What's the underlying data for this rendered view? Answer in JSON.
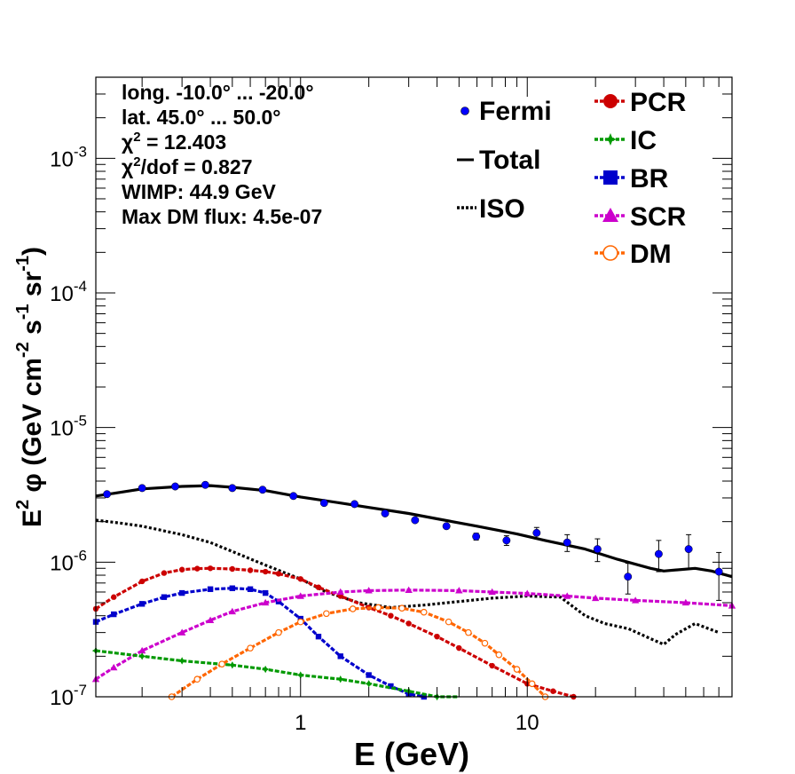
{
  "chart_data": {
    "type": "line",
    "x_scale": "log",
    "y_scale": "log",
    "xlim": [
      0.125,
      80
    ],
    "ylim": [
      1e-07,
      0.004
    ],
    "xlabel": "E (GeV)",
    "ylabel": {
      "base": "E",
      "sup1": "2",
      "phi": " φ (GeV cm",
      "sup2": "-2",
      "mid1": " s",
      "sup3": "-1",
      "mid2": " sr",
      "sup4": "-1",
      "close": ")"
    },
    "x_ticks": [
      {
        "value": 1,
        "label": "1"
      },
      {
        "value": 10,
        "label": "10"
      }
    ],
    "y_ticks": [
      {
        "value": 1e-07,
        "base": "10",
        "exp": "-7"
      },
      {
        "value": 1e-06,
        "base": "10",
        "exp": "-6"
      },
      {
        "value": 1e-05,
        "base": "10",
        "exp": "-5"
      },
      {
        "value": 0.0001,
        "base": "10",
        "exp": "-4"
      },
      {
        "value": 0.001,
        "base": "10",
        "exp": "-3"
      }
    ],
    "info_lines": [
      {
        "text": "long. -10.0° ... -20.0°"
      },
      {
        "text": "lat. 45.0° ... 50.0°"
      },
      {
        "pre": "χ",
        "sup": "2",
        "post": " = 12.403"
      },
      {
        "pre": "χ",
        "sup": "2",
        "post": "/dof = 0.827"
      },
      {
        "text": "WIMP: 44.9 GeV"
      },
      {
        "text": "Max DM flux: 4.5e-07"
      }
    ],
    "legend_left": [
      {
        "name": "Fermi",
        "style": "points",
        "color": "#0000ff"
      },
      {
        "name": "Total",
        "style": "solid",
        "color": "#000000"
      },
      {
        "name": "ISO",
        "style": "dotted",
        "color": "#000000"
      }
    ],
    "legend_right": [
      {
        "name": "PCR",
        "marker": "circle",
        "color": "#cc0000"
      },
      {
        "name": "IC",
        "marker": "star",
        "color": "#009900"
      },
      {
        "name": "BR",
        "marker": "square",
        "color": "#0000cc"
      },
      {
        "name": "SCR",
        "marker": "triangle",
        "color": "#cc00cc"
      },
      {
        "name": "DM",
        "marker": "open-circle",
        "color": "#ff6600"
      }
    ],
    "series": [
      {
        "name": "Total",
        "color": "#000000",
        "style": "solid",
        "x": [
          0.125,
          0.16,
          0.2,
          0.3,
          0.4,
          0.5,
          0.7,
          1.0,
          1.5,
          2.0,
          3.0,
          4.0,
          6.0,
          9.0,
          12.0,
          18.0,
          25.0,
          35.0,
          40.0,
          55.0,
          65.0,
          80.0
        ],
        "y": [
          3.1e-06,
          3.3e-06,
          3.5e-06,
          3.65e-06,
          3.7e-06,
          3.6e-06,
          3.4e-06,
          3.05e-06,
          2.75e-06,
          2.55e-06,
          2.3e-06,
          2.1e-06,
          1.85e-06,
          1.62e-06,
          1.45e-06,
          1.25e-06,
          1.05e-06,
          9e-07,
          8.6e-07,
          9e-07,
          8.6e-07,
          7.8e-07
        ]
      },
      {
        "name": "ISO",
        "color": "#000000",
        "style": "dotted",
        "x": [
          0.125,
          0.16,
          0.2,
          0.3,
          0.4,
          0.5,
          0.7,
          1.0,
          1.3,
          1.8,
          2.5,
          3.5,
          5.0,
          7.0,
          10.0,
          14.0,
          18.0,
          22.0,
          28.0,
          35.0,
          40.0,
          45.0,
          55.0,
          70.0
        ],
        "y": [
          2.05e-06,
          1.95e-06,
          1.85e-06,
          1.6e-06,
          1.4e-06,
          1.2e-06,
          9.5e-07,
          7.5e-07,
          6e-07,
          5e-07,
          4.6e-07,
          4.8e-07,
          5.1e-07,
          5.4e-07,
          5.6e-07,
          5.5e-07,
          4e-07,
          3.5e-07,
          3.2e-07,
          2.7e-07,
          2.45e-07,
          2.9e-07,
          3.5e-07,
          3e-07
        ]
      },
      {
        "name": "PCR",
        "color": "#cc0000",
        "marker": "circle",
        "x": [
          0.125,
          0.15,
          0.2,
          0.25,
          0.3,
          0.35,
          0.4,
          0.5,
          0.6,
          0.7,
          0.8,
          1.0,
          1.2,
          1.5,
          2.0,
          2.5,
          3.0,
          4.0,
          5.0,
          7.0,
          10.0,
          13.0,
          16.0
        ],
        "y": [
          4.5e-07,
          5.5e-07,
          7.2e-07,
          8.3e-07,
          8.8e-07,
          8.95e-07,
          9e-07,
          8.9e-07,
          8.7e-07,
          8.5e-07,
          8.2e-07,
          7.5e-07,
          6.5e-07,
          5.6e-07,
          4.6e-07,
          4e-07,
          3.5e-07,
          2.8e-07,
          2.3e-07,
          1.7e-07,
          1.25e-07,
          1.1e-07,
          1e-07
        ]
      },
      {
        "name": "BR",
        "color": "#0000cc",
        "marker": "square",
        "x": [
          0.125,
          0.15,
          0.2,
          0.25,
          0.3,
          0.4,
          0.5,
          0.6,
          0.7,
          0.8,
          1.0,
          1.2,
          1.5,
          2.0,
          2.5,
          3.0,
          3.5
        ],
        "y": [
          3.6e-07,
          4.1e-07,
          4.9e-07,
          5.5e-07,
          5.9e-07,
          6.3e-07,
          6.4e-07,
          6.3e-07,
          5.9e-07,
          5.1e-07,
          3.8e-07,
          2.8e-07,
          2e-07,
          1.45e-07,
          1.2e-07,
          1.05e-07,
          1e-07
        ]
      },
      {
        "name": "SCR",
        "color": "#cc00cc",
        "marker": "triangle",
        "x": [
          0.125,
          0.15,
          0.2,
          0.3,
          0.4,
          0.5,
          0.7,
          1.0,
          1.5,
          2.0,
          3.0,
          5.0,
          7.0,
          10.0,
          15.0,
          20.0,
          30.0,
          50.0,
          80.0
        ],
        "y": [
          1.35e-07,
          1.65e-07,
          2.2e-07,
          3e-07,
          3.7e-07,
          4.3e-07,
          5e-07,
          5.6e-07,
          6e-07,
          6.15e-07,
          6.2e-07,
          6.15e-07,
          6e-07,
          5.85e-07,
          5.6e-07,
          5.4e-07,
          5.2e-07,
          5e-07,
          4.75e-07
        ]
      },
      {
        "name": "IC",
        "color": "#009900",
        "marker": "star",
        "x": [
          0.125,
          0.2,
          0.3,
          0.5,
          0.7,
          1.0,
          1.5,
          2.0,
          3.0,
          4.0,
          5.0
        ],
        "y": [
          2.2e-07,
          2e-07,
          1.85e-07,
          1.72e-07,
          1.6e-07,
          1.45e-07,
          1.35e-07,
          1.25e-07,
          1.1e-07,
          1e-07,
          9.7e-08
        ]
      },
      {
        "name": "DM",
        "color": "#ff6600",
        "marker": "open-circle",
        "x": [
          0.27,
          0.35,
          0.45,
          0.6,
          0.8,
          1.0,
          1.3,
          1.7,
          2.2,
          2.8,
          3.5,
          4.5,
          5.5,
          6.5,
          7.5,
          9.0,
          10.5,
          12.0
        ],
        "y": [
          1e-07,
          1.35e-07,
          1.75e-07,
          2.3e-07,
          3e-07,
          3.6e-07,
          4.15e-07,
          4.5e-07,
          4.6e-07,
          4.55e-07,
          4.25e-07,
          3.6e-07,
          3e-07,
          2.5e-07,
          2.05e-07,
          1.6e-07,
          1.25e-07,
          1e-07
        ]
      }
    ],
    "fermi": {
      "x": [
        0.14,
        0.2,
        0.28,
        0.38,
        0.5,
        0.68,
        0.93,
        1.27,
        1.73,
        2.36,
        3.2,
        4.4,
        5.95,
        8.1,
        11.0,
        15.0,
        20.4,
        27.8,
        38.0,
        51.5,
        70.0
      ],
      "y": [
        3.2e-06,
        3.55e-06,
        3.65e-06,
        3.75e-06,
        3.55e-06,
        3.45e-06,
        3.1e-06,
        2.75e-06,
        2.7e-06,
        2.3e-06,
        2.05e-06,
        1.85e-06,
        1.55e-06,
        1.45e-06,
        1.65e-06,
        1.4e-06,
        1.25e-06,
        7.8e-07,
        1.15e-06,
        1.25e-06,
        8.5e-07
      ],
      "err": [
        2e-08,
        2e-08,
        2e-08,
        2e-08,
        2e-08,
        3e-08,
        3e-08,
        4e-08,
        4e-08,
        5e-08,
        5e-08,
        7e-08,
        9e-08,
        1.2e-07,
        1.6e-07,
        2e-07,
        2.4e-07,
        2e-07,
        3e-07,
        3.5e-07,
        3.3e-07
      ]
    }
  }
}
